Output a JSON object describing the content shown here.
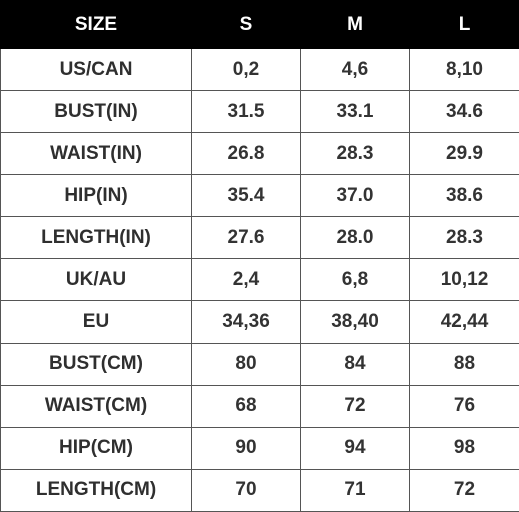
{
  "table": {
    "header": [
      "SIZE",
      "S",
      "M",
      "L"
    ],
    "rows": [
      [
        "US/CAN",
        "0,2",
        "4,6",
        "8,10"
      ],
      [
        "BUST(IN)",
        "31.5",
        "33.1",
        "34.6"
      ],
      [
        "WAIST(IN)",
        "26.8",
        "28.3",
        "29.9"
      ],
      [
        "HIP(IN)",
        "35.4",
        "37.0",
        "38.6"
      ],
      [
        "LENGTH(IN)",
        "27.6",
        "28.0",
        "28.3"
      ],
      [
        "UK/AU",
        "2,4",
        "6,8",
        "10,12"
      ],
      [
        "EU",
        "34,36",
        "38,40",
        "42,44"
      ],
      [
        "BUST(CM)",
        "80",
        "84",
        "88"
      ],
      [
        "WAIST(CM)",
        "68",
        "72",
        "76"
      ],
      [
        "HIP(CM)",
        "90",
        "94",
        "98"
      ],
      [
        "LENGTH(CM)",
        "70",
        "71",
        "72"
      ]
    ]
  },
  "colors": {
    "header_background": "#000000",
    "header_text": "#ffffff",
    "cell_text": "#333333",
    "grid_lines": "#555555"
  }
}
